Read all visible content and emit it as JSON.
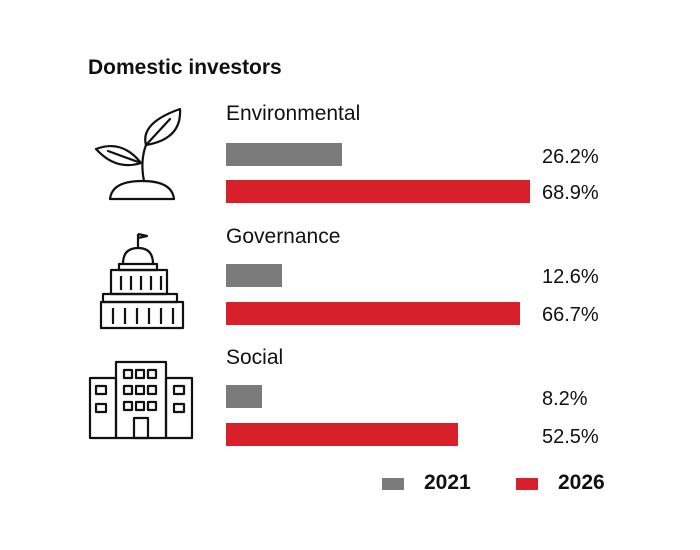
{
  "chart_data": {
    "type": "bar",
    "orientation": "horizontal",
    "title": "Domestic investors",
    "categories": [
      "Environmental",
      "Governance",
      "Social"
    ],
    "series": [
      {
        "name": "2021",
        "values": [
          26.2,
          12.6,
          8.2
        ],
        "value_labels": [
          "26.2%",
          "12.6%",
          "8.2%"
        ],
        "color": "#7a7a7a"
      },
      {
        "name": "2026",
        "values": [
          68.9,
          66.7,
          52.5
        ],
        "value_labels": [
          "68.9%",
          "66.7%",
          "52.5%"
        ],
        "color": "#d7202a"
      }
    ],
    "xlim": [
      0,
      100
    ],
    "grid": false,
    "legend": "bottom-right"
  },
  "icons": [
    "plant-icon",
    "capitol-building-icon",
    "office-buildings-icon"
  ]
}
